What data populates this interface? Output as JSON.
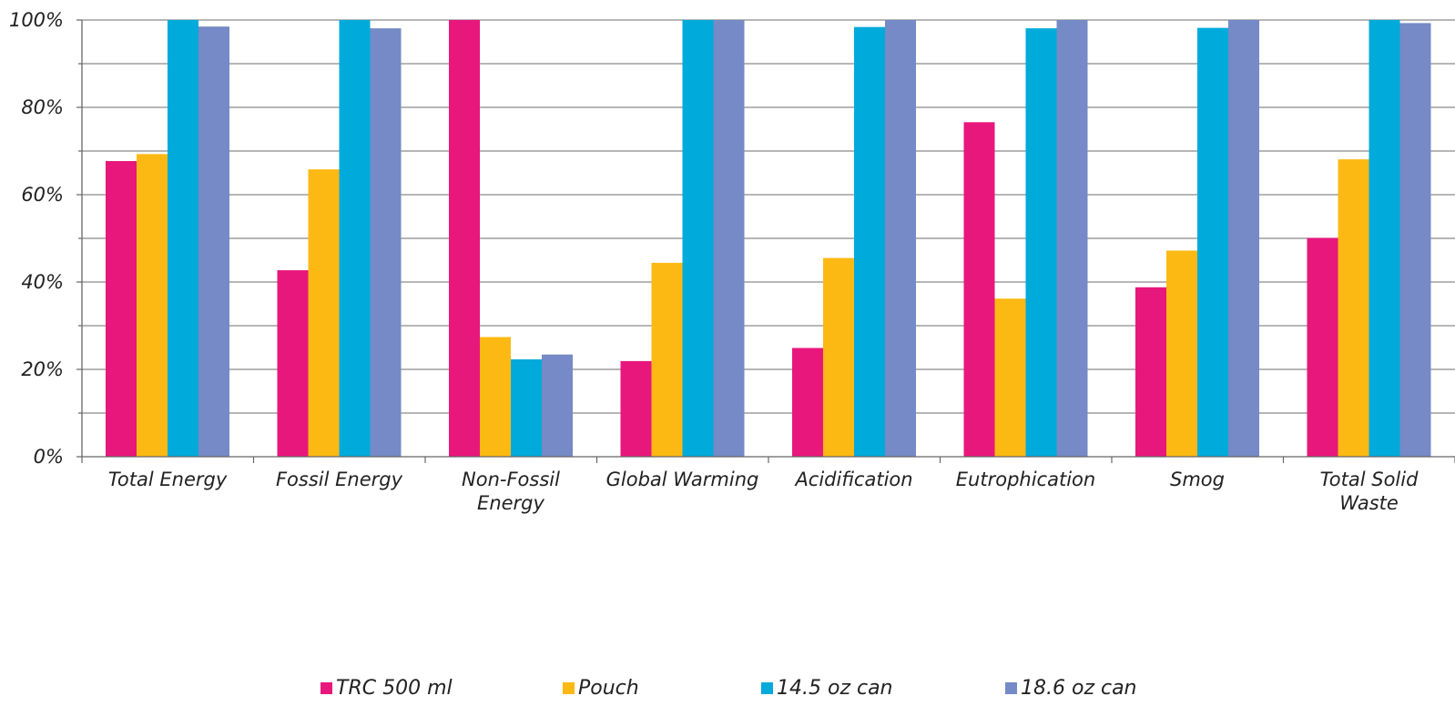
{
  "chart_data": {
    "type": "bar",
    "title": "",
    "xlabel": "",
    "ylabel": "",
    "ylim": [
      0,
      100
    ],
    "y_ticks": [
      "0%",
      "20%",
      "40%",
      "60%",
      "80%",
      "100%"
    ],
    "grid": true,
    "legend_position": "bottom",
    "categories": [
      [
        "Total Energy"
      ],
      [
        "Fossil Energy"
      ],
      [
        "Non-Fossil",
        "Energy"
      ],
      [
        "Global Warming"
      ],
      [
        "Acidification"
      ],
      [
        "Eutrophication"
      ],
      [
        "Smog"
      ],
      [
        "Total Solid",
        "Waste"
      ]
    ],
    "series": [
      {
        "name": "TRC 500 ml",
        "color": "#E8177C",
        "values": [
          67.7,
          42.7,
          100,
          21.9,
          24.9,
          76.6,
          38.8,
          50.1
        ]
      },
      {
        "name": "Pouch",
        "color": "#FDB913",
        "values": [
          69.3,
          65.8,
          27.4,
          44.4,
          45.5,
          36.2,
          47.2,
          68.1
        ]
      },
      {
        "name": "14.5 oz can",
        "color": "#00AADB",
        "values": [
          100,
          100,
          22.3,
          100,
          98.4,
          98.1,
          98.2,
          100
        ]
      },
      {
        "name": "18.6 oz can",
        "color": "#758AC6",
        "values": [
          98.5,
          98.1,
          23.4,
          100,
          100,
          100,
          100,
          99.3
        ]
      }
    ]
  }
}
